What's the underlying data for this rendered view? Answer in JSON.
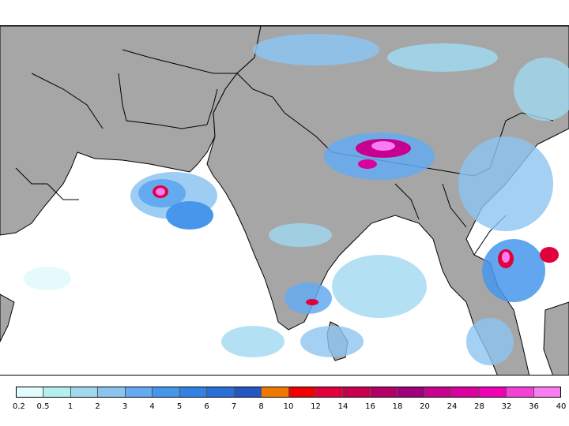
{
  "map": {
    "land_color": "#a6a6a6",
    "ocean_color": "#ffffff",
    "border_color": "#000000"
  },
  "legend": {
    "colors": [
      "#e2fbfb",
      "#b4eef0",
      "#a0d8f0",
      "#8cc4f0",
      "#64aaf0",
      "#4696ec",
      "#3282e6",
      "#2a6ed8",
      "#2456c4",
      "#f07800",
      "#f00000",
      "#e0003c",
      "#c8004c",
      "#b40064",
      "#a0007c",
      "#c80090",
      "#dc00a0",
      "#f000b4",
      "#f540d8",
      "#f87cf2"
    ],
    "labels": [
      "0.2",
      "0.5",
      "1",
      "2",
      "3",
      "4",
      "5",
      "6",
      "7",
      "8",
      "10",
      "12",
      "14",
      "16",
      "18",
      "20",
      "24",
      "28",
      "32",
      "36",
      "40"
    ]
  }
}
